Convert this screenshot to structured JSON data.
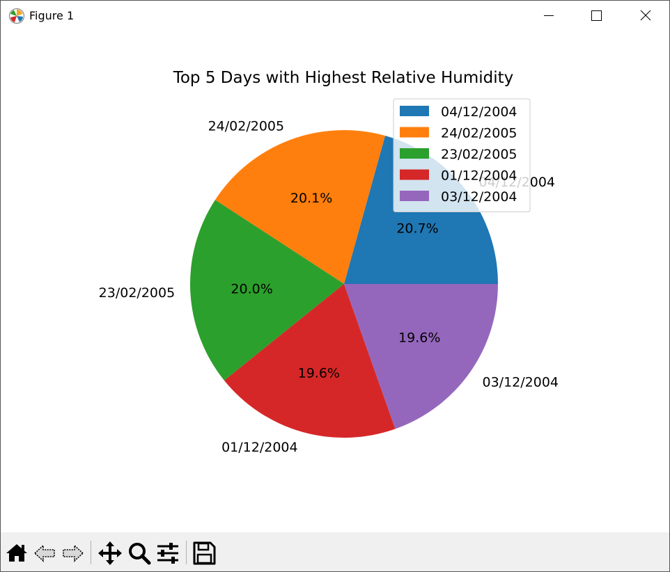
{
  "window": {
    "title": "Figure 1"
  },
  "toolbar": {
    "buttons": [
      {
        "icon": "home-icon"
      },
      {
        "icon": "back-arrow-icon"
      },
      {
        "icon": "forward-arrow-icon"
      },
      {
        "icon": "pan-icon"
      },
      {
        "icon": "zoom-icon"
      },
      {
        "icon": "configure-subplots-icon"
      },
      {
        "icon": "save-icon"
      }
    ]
  },
  "chart_data": {
    "type": "pie",
    "title": "Top 5 Days with Highest Relative Humidity",
    "labels": [
      "04/12/2004",
      "24/02/2005",
      "23/02/2005",
      "01/12/2004",
      "03/12/2004"
    ],
    "values": [
      20.7,
      20.1,
      20.0,
      19.6,
      19.6
    ],
    "autopct_labels": [
      "20.7%",
      "20.1%",
      "20.0%",
      "19.6%",
      "19.6%"
    ],
    "colors": [
      "#1f77b4",
      "#ff7f0e",
      "#2ca02c",
      "#d62728",
      "#9467bd"
    ],
    "start_angle_deg": 0,
    "legend": {
      "placement": "upper-right",
      "entries": [
        "04/12/2004",
        "24/02/2005",
        "23/02/2005",
        "01/12/2004",
        "03/12/2004"
      ]
    }
  }
}
